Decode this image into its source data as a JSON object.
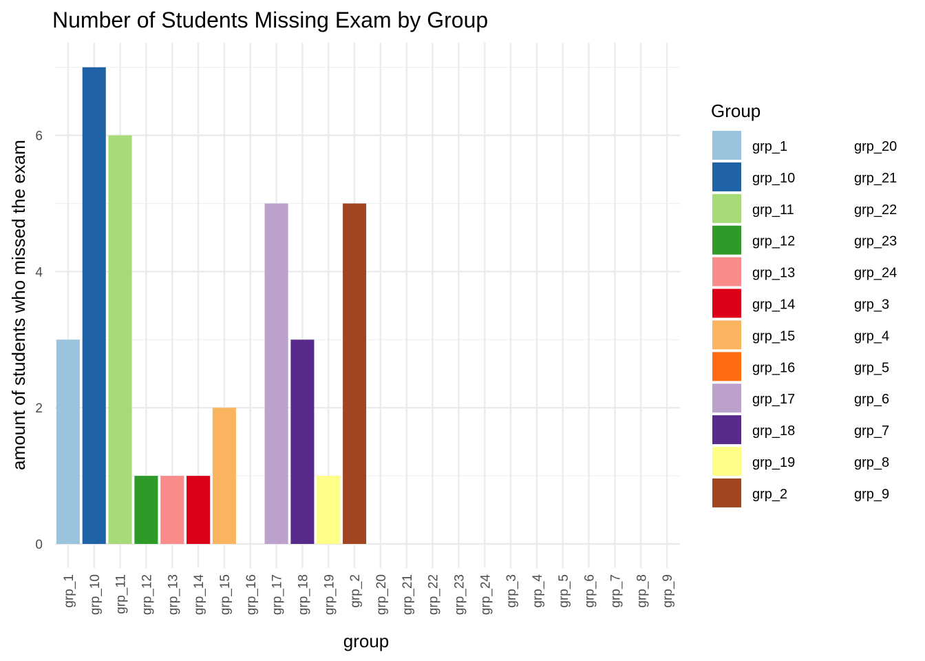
{
  "chart_data": {
    "type": "bar",
    "title": "Number of Students Missing Exam by Group",
    "xlabel": "group",
    "ylabel": "amount of students who missed the exam",
    "ylim": [
      0,
      7
    ],
    "yticks": [
      0,
      2,
      4,
      6
    ],
    "grid": true,
    "legend_title": "Group",
    "legend_position": "right",
    "categories": [
      "grp_1",
      "grp_10",
      "grp_11",
      "grp_12",
      "grp_13",
      "grp_14",
      "grp_15",
      "grp_16",
      "grp_17",
      "grp_18",
      "grp_19",
      "grp_2",
      "grp_20",
      "grp_21",
      "grp_22",
      "grp_23",
      "grp_24",
      "grp_3",
      "grp_4",
      "grp_5",
      "grp_6",
      "grp_7",
      "grp_8",
      "grp_9"
    ],
    "values": [
      3,
      7,
      6,
      1,
      1,
      1,
      2,
      0,
      5,
      3,
      1,
      5,
      0,
      0,
      0,
      0,
      0,
      0,
      0,
      0,
      0,
      0,
      0,
      0
    ],
    "colors": [
      "#9ac4de",
      "#1f63a6",
      "#a7db78",
      "#2e9a27",
      "#f98b8a",
      "#dc0019",
      "#fab45f",
      "#ff6b0e",
      "#bca1cc",
      "#582a8b",
      "#fffe86",
      "#a04521"
    ],
    "legend_entries_col1": [
      "grp_1",
      "grp_10",
      "grp_11",
      "grp_12",
      "grp_13",
      "grp_14",
      "grp_15",
      "grp_16",
      "grp_17",
      "grp_18",
      "grp_19",
      "grp_2"
    ],
    "legend_entries_col2": [
      "grp_20",
      "grp_21",
      "grp_22",
      "grp_23",
      "grp_24",
      "grp_3",
      "grp_4",
      "grp_5",
      "grp_6",
      "grp_7",
      "grp_8",
      "grp_9"
    ]
  }
}
